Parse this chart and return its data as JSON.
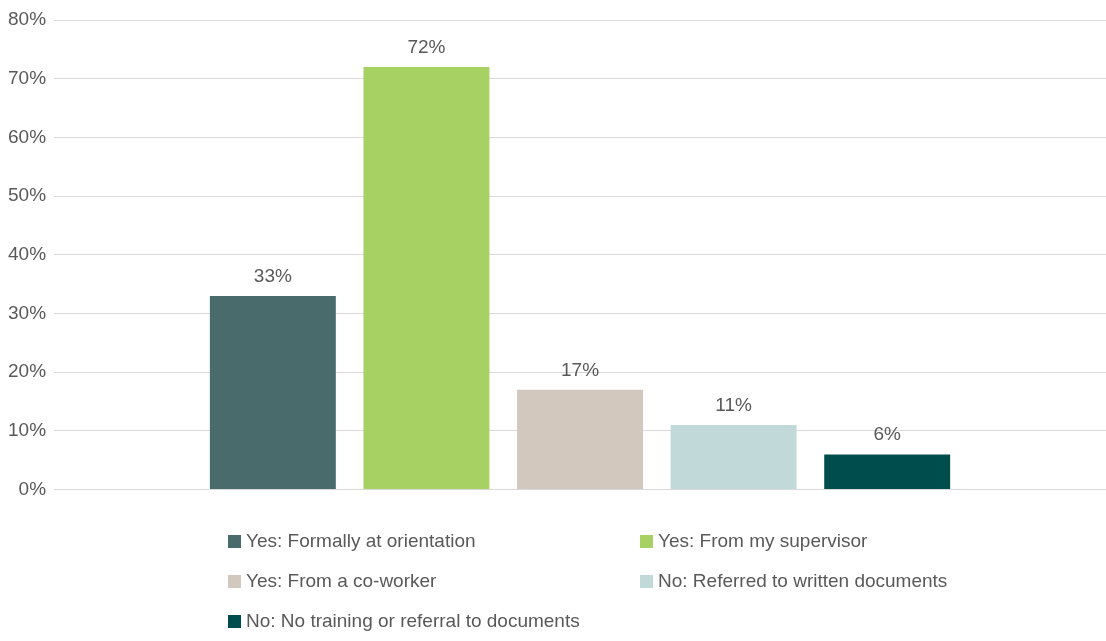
{
  "chart_data": {
    "type": "bar",
    "categories": [
      null
    ],
    "series": [
      {
        "name": "Yes: Formally at orientation",
        "color": "#4a6b6b",
        "values": [
          33
        ],
        "value_labels": [
          "33%"
        ]
      },
      {
        "name": "Yes: From my supervisor",
        "color": "#a8d164",
        "values": [
          72
        ],
        "value_labels": [
          "72%"
        ]
      },
      {
        "name": "Yes: From a co-worker",
        "color": "#d3c8be",
        "values": [
          17
        ],
        "value_labels": [
          "17%"
        ]
      },
      {
        "name": "No: Referred to written documents",
        "color": "#c2d9da",
        "values": [
          11
        ],
        "value_labels": [
          "11%"
        ]
      },
      {
        "name": "No: No training or referral to documents",
        "color": "#004d4d",
        "values": [
          6
        ],
        "value_labels": [
          "6%"
        ]
      }
    ],
    "ylim": [
      0,
      80
    ],
    "yticks": [
      {
        "value": 0,
        "label": "0%"
      },
      {
        "value": 10,
        "label": "10%"
      },
      {
        "value": 20,
        "label": "20%"
      },
      {
        "value": 30,
        "label": "30%"
      },
      {
        "value": 40,
        "label": "40%"
      },
      {
        "value": 50,
        "label": "50%"
      },
      {
        "value": 60,
        "label": "60%"
      },
      {
        "value": 70,
        "label": "70%"
      },
      {
        "value": 80,
        "label": "80%"
      }
    ],
    "grid": "y",
    "legend": "bottom"
  }
}
